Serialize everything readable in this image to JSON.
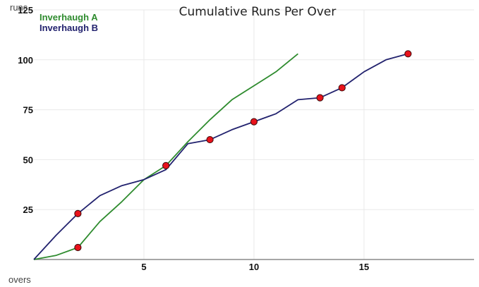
{
  "chart_data": {
    "type": "line",
    "title": "Cumulative Runs Per Over",
    "xlabel": "overs",
    "ylabel": "runs",
    "xlim": [
      0,
      20
    ],
    "ylim": [
      0,
      125
    ],
    "x_ticks": [
      5,
      10,
      15
    ],
    "y_ticks": [
      25,
      50,
      75,
      100,
      125
    ],
    "grid": true,
    "legend_position": "top-left",
    "series": [
      {
        "name": "Inverhaugh A",
        "color": "#2e8b2e",
        "x": [
          0,
          1,
          2,
          3,
          4,
          5,
          6,
          7,
          8,
          9,
          10,
          11,
          12
        ],
        "y": [
          0,
          2,
          6,
          19,
          29,
          40,
          47,
          59,
          70,
          80,
          87,
          94,
          103
        ],
        "wickets": [
          {
            "x": 2,
            "y": 6
          },
          {
            "x": 6,
            "y": 47
          }
        ]
      },
      {
        "name": "Inverhaugh B",
        "color": "#22226e",
        "x": [
          0,
          1,
          2,
          3,
          4,
          5,
          6,
          7,
          8,
          9,
          10,
          11,
          12,
          13,
          14,
          15,
          16,
          17
        ],
        "y": [
          0,
          12,
          23,
          32,
          37,
          40,
          45,
          58,
          60,
          65,
          69,
          73,
          80,
          81,
          86,
          94,
          100,
          103
        ],
        "wickets": [
          {
            "x": 2,
            "y": 23
          },
          {
            "x": 8,
            "y": 60
          },
          {
            "x": 10,
            "y": 69
          },
          {
            "x": 13,
            "y": 81
          },
          {
            "x": 14,
            "y": 86
          },
          {
            "x": 17,
            "y": 103
          }
        ]
      }
    ],
    "wicket_marker_color": "#e8121b"
  }
}
